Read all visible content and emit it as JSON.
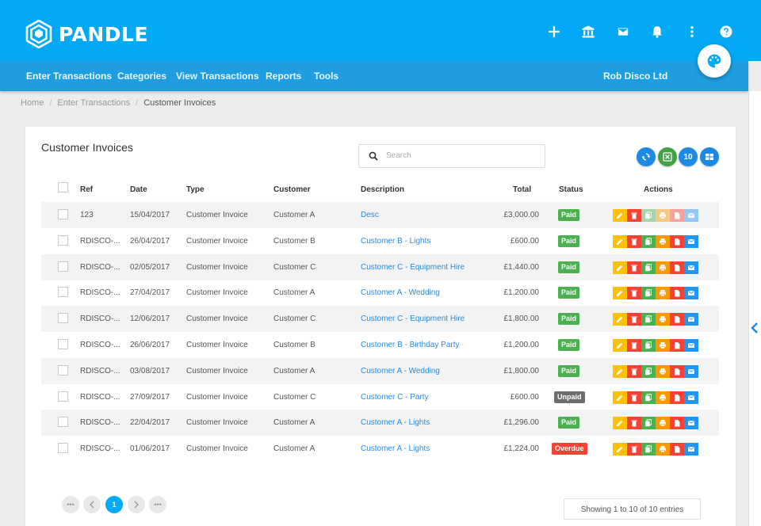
{
  "app": {
    "brand": "PANDLE",
    "company": "Rob Disco Ltd",
    "colors": {
      "primary": "#03a9f4",
      "nav": "#1e9ee0",
      "paid": "#4caf50",
      "unpaid": "#6d6d6d",
      "overdue": "#f44336",
      "edit": "#ffc107",
      "delete": "#f44336",
      "copy": "#4caf50",
      "print": "#ff9800",
      "pdf": "#f44336",
      "email": "#2196f3"
    }
  },
  "top_icons": [
    "plus-icon",
    "bank-icon",
    "mail-icon",
    "bell-icon",
    "more-vertical-icon",
    "help-icon"
  ],
  "nav": {
    "items": [
      "Enter Transactions",
      "Categories",
      "View Transactions",
      "Reports",
      "Tools"
    ]
  },
  "breadcrumb": {
    "home": "Home",
    "section": "Enter Transactions",
    "current": "Customer Invoices",
    "separator": "/"
  },
  "page": {
    "title": "Customer Invoices",
    "search_placeholder": "Search",
    "page_length": "10"
  },
  "table": {
    "columns": {
      "ref": "Ref",
      "date": "Date",
      "type": "Type",
      "customer": "Customer",
      "description": "Description",
      "total": "Total",
      "status": "Status",
      "actions": "Actions"
    },
    "rows": [
      {
        "ref": "123",
        "date": "15/04/2017",
        "type": "Customer Invoice",
        "customer": "Customer A",
        "description": "Desc",
        "total": "£3,000.00",
        "status": "Paid"
      },
      {
        "ref": "RDISCO-...",
        "date": "26/04/2017",
        "type": "Customer Invoice",
        "customer": "Customer B",
        "description": "Customer B - Lights",
        "total": "£600.00",
        "status": "Paid"
      },
      {
        "ref": "RDISCO-...",
        "date": "02/05/2017",
        "type": "Customer Invoice",
        "customer": "Customer C",
        "description": "Customer C - Equipment Hire",
        "total": "£1,440.00",
        "status": "Paid"
      },
      {
        "ref": "RDISCO-...",
        "date": "27/04/2017",
        "type": "Customer Invoice",
        "customer": "Customer A",
        "description": "Customer A - Wedding",
        "total": "£1,200.00",
        "status": "Paid"
      },
      {
        "ref": "RDISCO-...",
        "date": "12/06/2017",
        "type": "Customer Invoice",
        "customer": "Customer C",
        "description": "Customer C - Equipment Hire",
        "total": "£1,800.00",
        "status": "Paid"
      },
      {
        "ref": "RDISCO-...",
        "date": "26/06/2017",
        "type": "Customer Invoice",
        "customer": "Customer B",
        "description": "Customer B - Birthday Party",
        "total": "£1,200.00",
        "status": "Paid"
      },
      {
        "ref": "RDISCO-...",
        "date": "03/08/2017",
        "type": "Customer Invoice",
        "customer": "Customer A",
        "description": "Customer A - Wedding",
        "total": "£1,800.00",
        "status": "Paid"
      },
      {
        "ref": "RDISCO-...",
        "date": "27/09/2017",
        "type": "Customer Invoice",
        "customer": "Customer C",
        "description": "Customer C - Party",
        "total": "£600.00",
        "status": "Unpaid"
      },
      {
        "ref": "RDISCO-...",
        "date": "22/04/2017",
        "type": "Customer Invoice",
        "customer": "Customer A",
        "description": "Customer A - Lights",
        "total": "£1,296.00",
        "status": "Paid"
      },
      {
        "ref": "RDISCO-...",
        "date": "01/06/2017",
        "type": "Customer Invoice",
        "customer": "Customer A",
        "description": "Customer A - Lights",
        "total": "£1,224.00",
        "status": "Overdue"
      }
    ]
  },
  "pagination": {
    "first": "•••",
    "current": "1",
    "last": "•••",
    "info": "Showing 1 to 10 of 10 entries"
  }
}
